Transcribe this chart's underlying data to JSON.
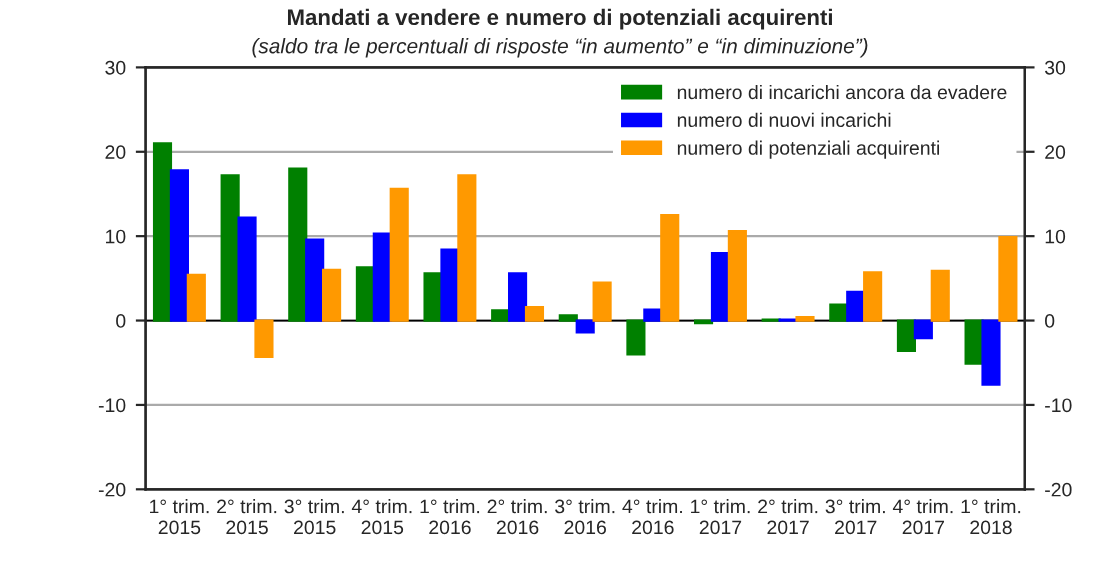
{
  "chart_data": {
    "type": "bar",
    "title": "Mandati a vendere e numero di potenziali acquirenti",
    "subtitle": "(saldo tra le percentuali di risposte “in aumento” e “in diminuzione”)",
    "categories": [
      "1° trim.\n2015",
      "2° trim.\n2015",
      "3° trim.\n2015",
      "4° trim.\n2015",
      "1° trim.\n2016",
      "2° trim.\n2016",
      "3° trim.\n2016",
      "4° trim.\n2016",
      "1° trim.\n2017",
      "2° trim.\n2017",
      "3° trim.\n2017",
      "4° trim.\n2017",
      "1° trim.\n2018"
    ],
    "series": [
      {
        "name": "numero di incarichi ancora da evadere",
        "color": "#008000",
        "values": [
          21,
          17.2,
          18,
          6.3,
          5.6,
          1.2,
          0.6,
          -4,
          -0.3,
          0.1,
          1.9,
          -3.6,
          -5.1
        ]
      },
      {
        "name": "numero di nuovi incarichi",
        "color": "#0000ff",
        "values": [
          17.8,
          12.2,
          9.6,
          10.3,
          8.4,
          5.6,
          -1.4,
          1.3,
          8,
          0.1,
          3.4,
          -2.1,
          -7.6
        ]
      },
      {
        "name": "numero di potenziali acquirenti",
        "color": "#ff9900",
        "values": [
          5.4,
          -4.3,
          6,
          15.6,
          17.2,
          1.6,
          4.5,
          12.5,
          10.6,
          0.4,
          5.7,
          5.9,
          9.9
        ]
      }
    ],
    "ylim": [
      -20,
      30
    ],
    "yticks": [
      -20,
      -10,
      0,
      10,
      20,
      30
    ],
    "y2lim": [
      -20,
      30
    ],
    "y2ticks": [
      -20,
      -10,
      0,
      10,
      20,
      30
    ],
    "grid": "y",
    "legend": "top right"
  }
}
